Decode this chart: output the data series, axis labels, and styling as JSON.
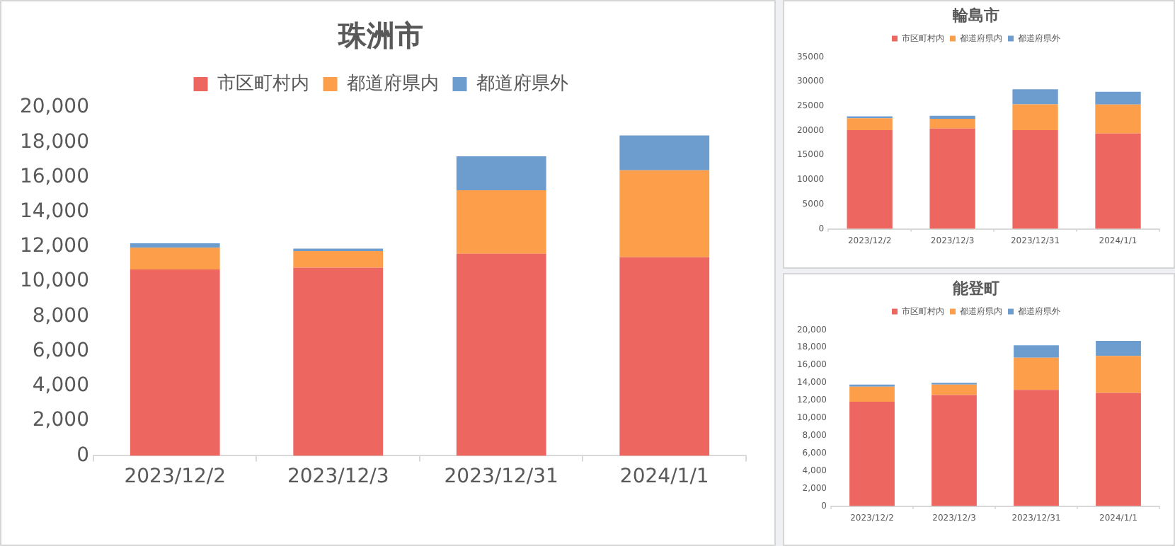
{
  "chart_data": [
    {
      "type": "bar",
      "title": "珠洲市",
      "stacked": true,
      "legend": "top",
      "categories": [
        "2023/12/2",
        "2023/12/3",
        "2023/12/31",
        "2024/1/1"
      ],
      "series": [
        {
          "name": "市区町村内",
          "color": "#ee6660",
          "values": [
            10700,
            10800,
            11600,
            11400
          ]
        },
        {
          "name": "都道府県内",
          "color": "#fd9e4a",
          "values": [
            1250,
            950,
            3650,
            5000
          ]
        },
        {
          "name": "都道府県外",
          "color": "#6d9ccf",
          "values": [
            250,
            150,
            1950,
            2000
          ]
        }
      ],
      "ylim": [
        0,
        20000
      ],
      "yticks": [
        {
          "value": 0,
          "label": "0"
        },
        {
          "value": 2000,
          "label": "2,000"
        },
        {
          "value": 4000,
          "label": "4,000"
        },
        {
          "value": 6000,
          "label": "6,000"
        },
        {
          "value": 8000,
          "label": "8,000"
        },
        {
          "value": 10000,
          "label": "10,000"
        },
        {
          "value": 12000,
          "label": "12,000"
        },
        {
          "value": 14000,
          "label": "14,000"
        },
        {
          "value": 16000,
          "label": "16,000"
        },
        {
          "value": 18000,
          "label": "18,000"
        },
        {
          "value": 20000,
          "label": "20,000"
        }
      ]
    },
    {
      "type": "bar",
      "title": "輪島市",
      "stacked": true,
      "legend": "top",
      "categories": [
        "2023/12/2",
        "2023/12/3",
        "2023/12/31",
        "2024/1/1"
      ],
      "series": [
        {
          "name": "市区町村内",
          "color": "#ee6660",
          "values": [
            20100,
            20400,
            20100,
            19400
          ]
        },
        {
          "name": "都道府県内",
          "color": "#fd9e4a",
          "values": [
            2400,
            2000,
            5250,
            5900
          ]
        },
        {
          "name": "都道府県外",
          "color": "#6d9ccf",
          "values": [
            400,
            600,
            3050,
            2600
          ]
        }
      ],
      "ylim": [
        0,
        35000
      ],
      "yticks": [
        0,
        5000,
        10000,
        15000,
        20000,
        25000,
        30000,
        35000
      ]
    },
    {
      "type": "bar",
      "title": "能登町",
      "stacked": true,
      "legend": "top",
      "categories": [
        "2023/12/2",
        "2023/12/3",
        "2023/12/31",
        "2024/1/1"
      ],
      "series": [
        {
          "name": "市区町村内",
          "color": "#ee6660",
          "values": [
            11850,
            12600,
            13200,
            12850
          ]
        },
        {
          "name": "都道府県内",
          "color": "#fd9e4a",
          "values": [
            1700,
            1200,
            3650,
            4200
          ]
        },
        {
          "name": "都道府県外",
          "color": "#6d9ccf",
          "values": [
            250,
            200,
            1400,
            1700
          ]
        }
      ],
      "ylim": [
        0,
        20000
      ],
      "yticks": [
        {
          "value": 0,
          "label": "0"
        },
        {
          "value": 2000,
          "label": "2,000"
        },
        {
          "value": 4000,
          "label": "4,000"
        },
        {
          "value": 6000,
          "label": "6,000"
        },
        {
          "value": 8000,
          "label": "8,000"
        },
        {
          "value": 10000,
          "label": "10,000"
        },
        {
          "value": 12000,
          "label": "12,000"
        },
        {
          "value": 14000,
          "label": "14,000"
        },
        {
          "value": 16000,
          "label": "16,000"
        },
        {
          "value": 18000,
          "label": "18,000"
        },
        {
          "value": 20000,
          "label": "20,000"
        }
      ]
    }
  ]
}
